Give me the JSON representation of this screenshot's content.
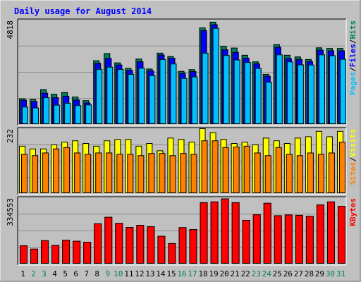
{
  "title": "Daily usage for August 2014",
  "colors": {
    "hits": "#00805C",
    "files": "#0000FF",
    "pages": "#00C0FF",
    "visits": "#FFFF00",
    "sites": "#FF8000",
    "kbytes": "#FF0000",
    "title": "#0000FF",
    "weekend": "#00805C",
    "weekday": "#000000",
    "plot_bg": "#C0C0C0"
  },
  "labels": {
    "y_max_top": "4818",
    "y_max_mid": "232",
    "y_max_bottom": "334553",
    "pages": "Pages",
    "files": "Files",
    "hits": "Hits",
    "sites": "Sites",
    "visits": "Visits",
    "kbytes": "KBytes",
    "sep": "/"
  },
  "chart_data": {
    "type": "bar",
    "title": "Daily usage for August 2014",
    "categories": [
      "1",
      "2",
      "3",
      "4",
      "5",
      "6",
      "7",
      "8",
      "9",
      "10",
      "11",
      "12",
      "13",
      "14",
      "15",
      "16",
      "17",
      "18",
      "19",
      "20",
      "21",
      "22",
      "23",
      "24",
      "25",
      "26",
      "27",
      "28",
      "29",
      "30",
      "31"
    ],
    "weekend_days": [
      "2",
      "3",
      "9",
      "10",
      "16",
      "17",
      "23",
      "24",
      "30",
      "31"
    ],
    "panels": [
      {
        "id": "top",
        "ymax": 4818,
        "series": [
          {
            "name": "Hits",
            "values": [
              1210,
              1170,
              1640,
              1420,
              1500,
              1290,
              1120,
              3000,
              3340,
              2900,
              2640,
              3080,
              2610,
              3360,
              3200,
              2500,
              2580,
              4550,
              4820,
              3680,
              3600,
              3260,
              2950,
              2360,
              3760,
              3260,
              3180,
              3060,
              3610,
              3580,
              3580
            ]
          },
          {
            "name": "Files",
            "values": [
              1140,
              1080,
              1470,
              1260,
              1330,
              1150,
              1010,
              2880,
              3110,
              2800,
              2550,
              2950,
              2520,
              3270,
              3120,
              2410,
              2490,
              4420,
              4700,
              3520,
              3400,
              3120,
              2850,
              2270,
              3640,
              3100,
              3060,
              2960,
              3500,
              3470,
              3470
            ]
          },
          {
            "name": "Pages",
            "values": [
              820,
              780,
              1260,
              910,
              1000,
              890,
              920,
              2600,
              2700,
              2590,
              2360,
              2650,
              2300,
              3060,
              2850,
              2170,
              2240,
              3360,
              4530,
              3250,
              3040,
              2920,
              2640,
              1990,
              3280,
              2950,
              2810,
              2800,
              3280,
              3240,
              3070
            ]
          }
        ]
      },
      {
        "id": "mid",
        "ymax": 232,
        "series": [
          {
            "name": "Visits",
            "values": [
              175,
              165,
              165,
              180,
              190,
              195,
              185,
              175,
              195,
              200,
              200,
              175,
              185,
              158,
              205,
              200,
              190,
              240,
              225,
              200,
              185,
              190,
              180,
              205,
              195,
              185,
              205,
              210,
              230,
              210,
              230
            ]
          },
          {
            "name": "Sites",
            "values": [
              145,
              140,
              150,
              165,
              170,
              150,
              145,
              150,
              150,
              145,
              145,
              140,
              148,
              148,
              140,
              148,
              145,
              195,
              195,
              170,
              172,
              175,
              150,
              140,
              170,
              145,
              140,
              150,
              145,
              150,
              190
            ]
          }
        ]
      },
      {
        "id": "bottom",
        "ymax": 334553,
        "series": [
          {
            "name": "KBytes",
            "values": [
              95000,
              78000,
              122000,
              97000,
              124000,
              119000,
              114000,
              210000,
              244000,
              212000,
              191000,
              202000,
              195000,
              145000,
              107000,
              190000,
              180000,
              320000,
              324000,
              340000,
              320000,
              228000,
              257000,
              317000,
              252000,
              256000,
              254000,
              249000,
              308000,
              324000,
              301000
            ]
          }
        ]
      }
    ]
  }
}
